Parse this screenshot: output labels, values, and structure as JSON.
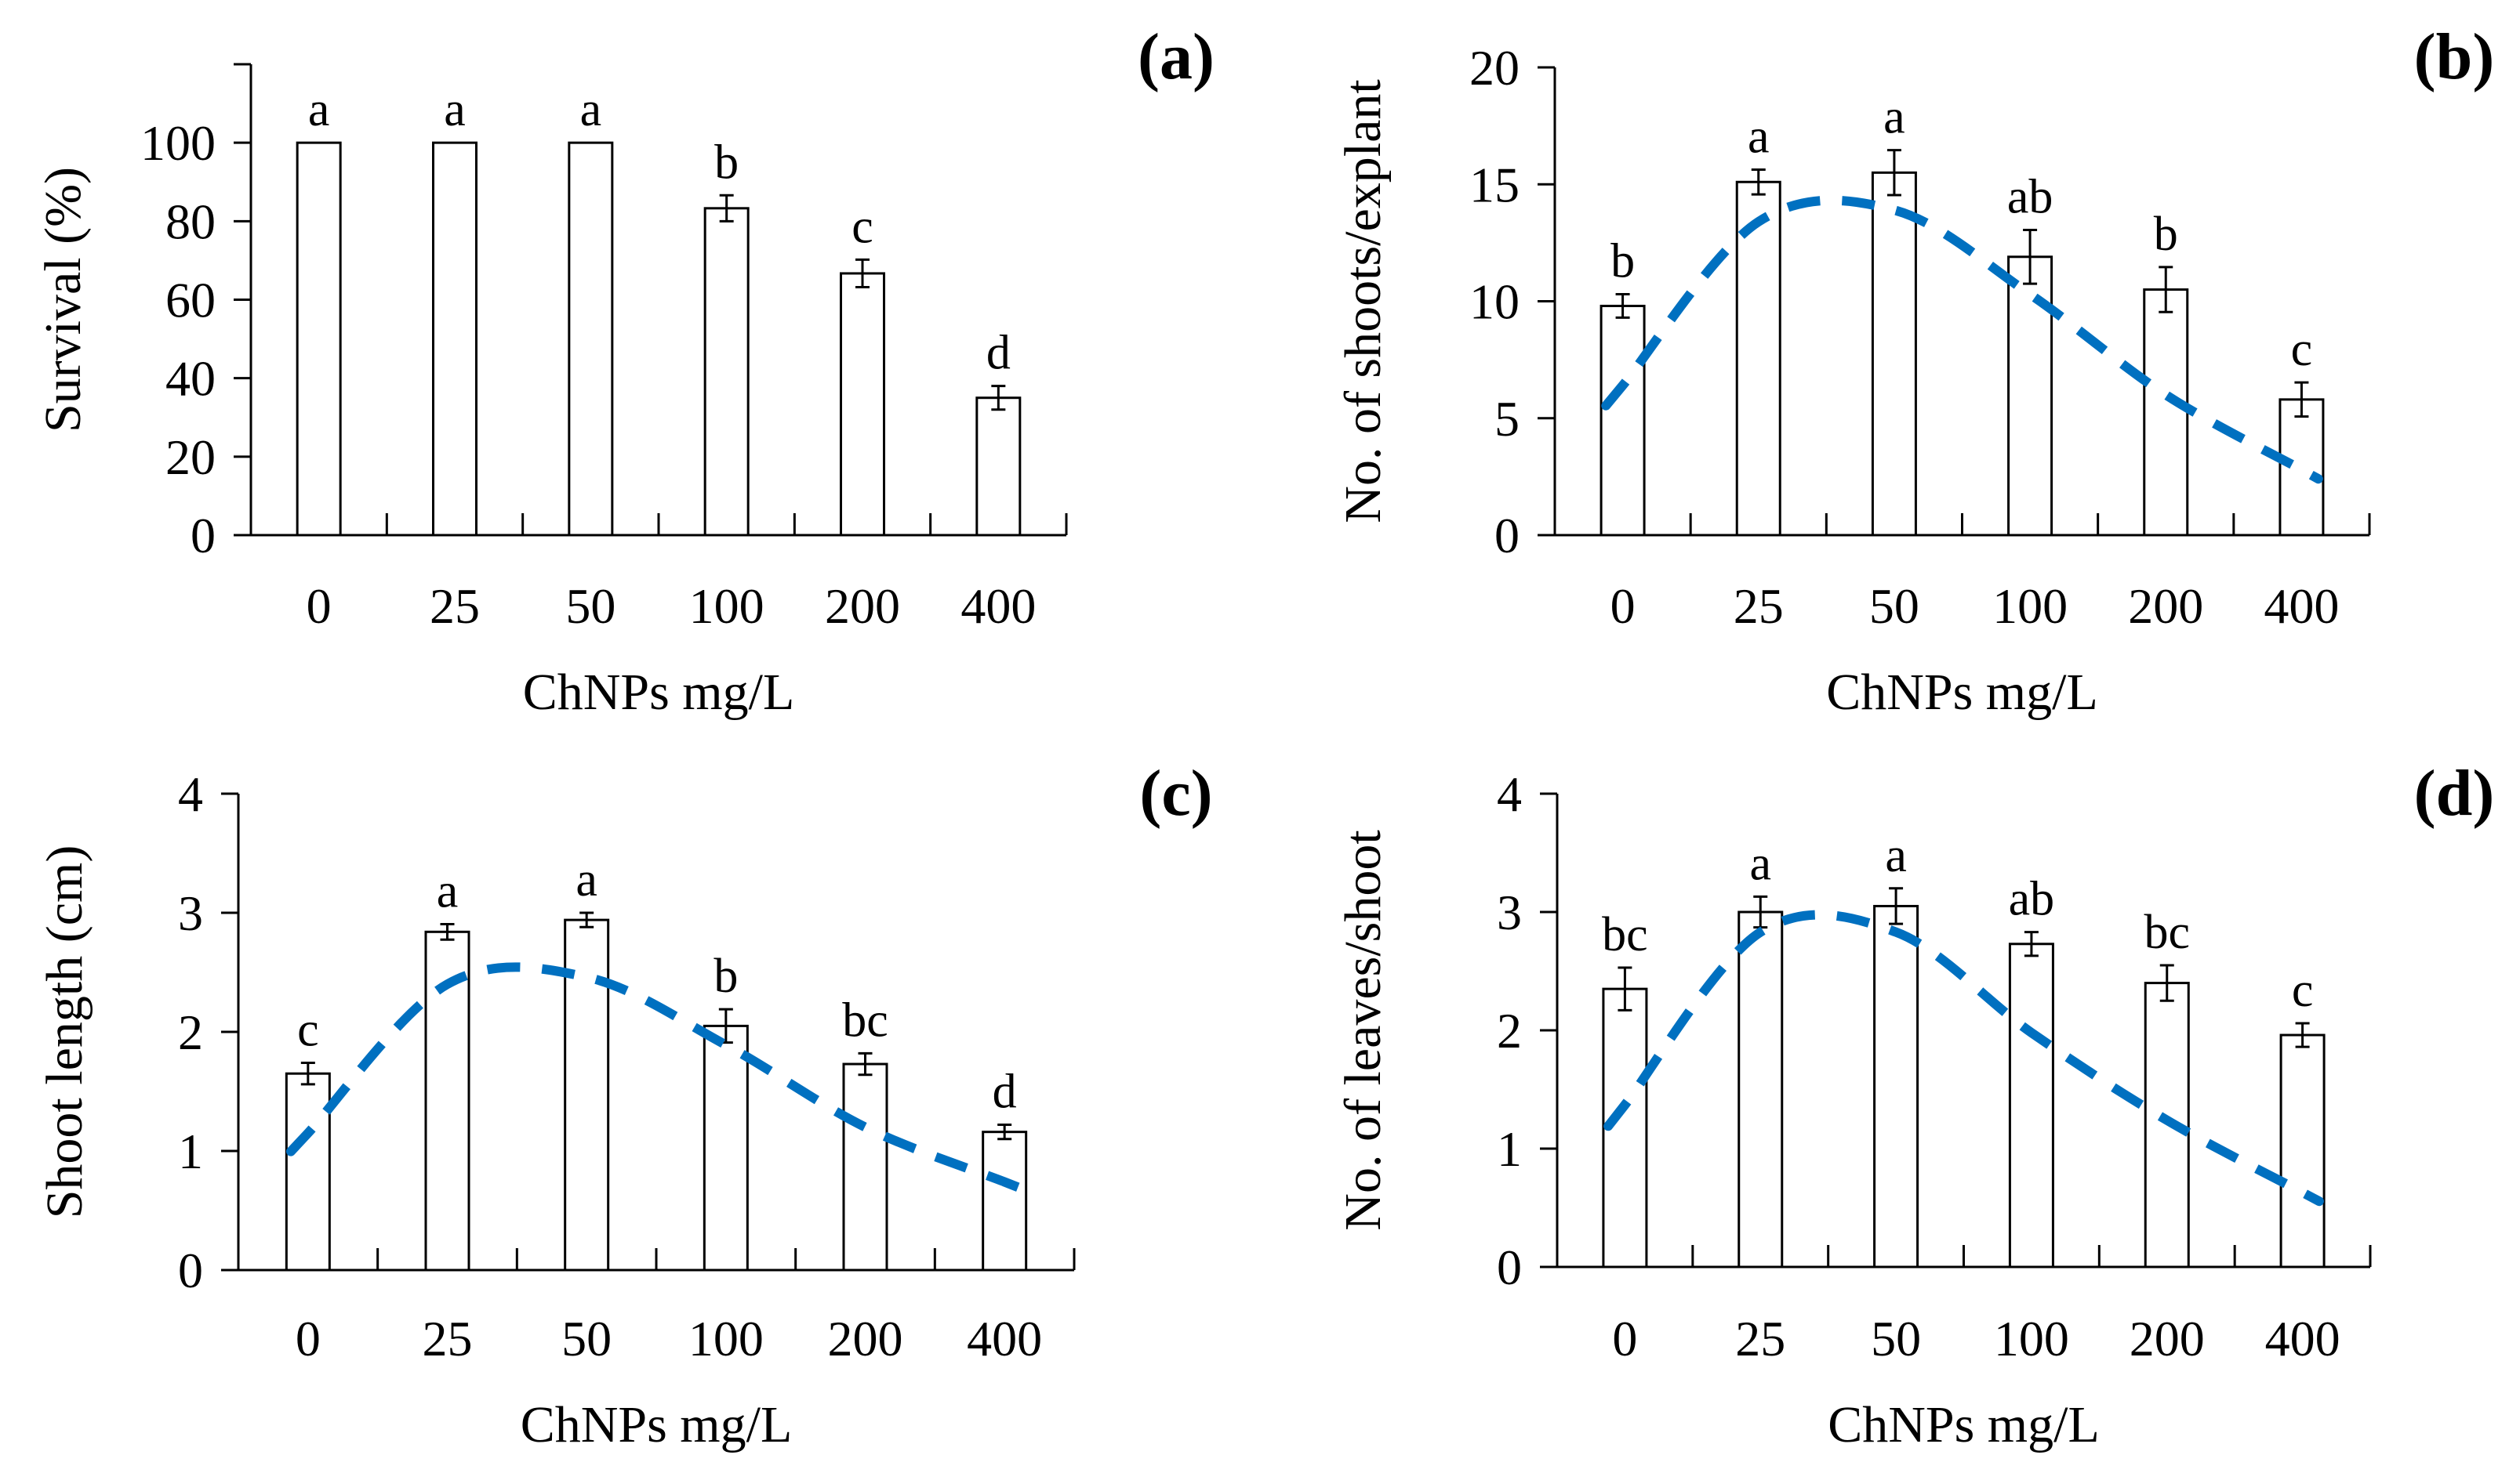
{
  "chart_data": [
    {
      "type": "bar",
      "panel_label": "(a)",
      "categories": [
        "0",
        "25",
        "50",
        "100",
        "200",
        "400"
      ],
      "values": [
        100,
        100,
        100,
        83.3,
        66.7,
        35
      ],
      "errors": [
        0,
        0,
        0,
        3.3,
        3.5,
        3
      ],
      "significance": [
        "a",
        "a",
        "a",
        "b",
        "c",
        "d"
      ],
      "xlabel": "ChNPs mg/L",
      "ylabel": "Survival (%)",
      "ylim": [
        0,
        120
      ],
      "yticks": [
        0,
        20,
        40,
        60,
        80,
        100
      ],
      "grid": false
    },
    {
      "type": "bar",
      "panel_label": "(b)",
      "categories": [
        "0",
        "25",
        "50",
        "100",
        "200",
        "400"
      ],
      "values": [
        9.8,
        15.1,
        15.5,
        11.9,
        10.5,
        5.8
      ],
      "errors": [
        0.5,
        0.53,
        0.96,
        1.15,
        0.96,
        0.73
      ],
      "significance": [
        "b",
        "a",
        "a",
        "ab",
        "b",
        "c"
      ],
      "trend_line": {
        "style": "dashed",
        "color": "#0070C0",
        "values": [
          6.4,
          13.4,
          13.9,
          10.3,
          6.0,
          2.8
        ]
      },
      "xlabel": "ChNPs mg/L",
      "ylabel": "No. of shoots/explant",
      "ylim": [
        0,
        20
      ],
      "yticks": [
        0,
        5,
        10,
        15,
        20
      ],
      "grid": false
    },
    {
      "type": "bar",
      "panel_label": "(c)",
      "categories": [
        "0",
        "25",
        "50",
        "100",
        "200",
        "400"
      ],
      "values": [
        1.65,
        2.84,
        2.94,
        2.05,
        1.73,
        1.16
      ],
      "errors": [
        0.09,
        0.065,
        0.06,
        0.14,
        0.09,
        0.06
      ],
      "significance": [
        "c",
        "a",
        "a",
        "b",
        "bc",
        "d"
      ],
      "trend_line": {
        "style": "dashed",
        "color": "#0070C0",
        "values": [
          1.15,
          2.4,
          2.46,
          1.89,
          1.2,
          0.74
        ]
      },
      "xlabel": "ChNPs mg/L",
      "ylabel": "Shoot length (cm)",
      "ylim": [
        0,
        4
      ],
      "yticks": [
        0,
        1,
        2,
        3,
        4
      ],
      "grid": false
    },
    {
      "type": "bar",
      "panel_label": "(d)",
      "categories": [
        "0",
        "25",
        "50",
        "100",
        "200",
        "400"
      ],
      "values": [
        2.35,
        3.0,
        3.05,
        2.73,
        2.4,
        1.96
      ],
      "errors": [
        0.18,
        0.13,
        0.15,
        0.1,
        0.15,
        0.1
      ],
      "significance": [
        "bc",
        "a",
        "a",
        "ab",
        "bc",
        "c"
      ],
      "trend_line": {
        "style": "dashed",
        "color": "#0070C0",
        "values": [
          1.37,
          2.83,
          2.83,
          1.98,
          1.24,
          0.63
        ]
      },
      "xlabel": "ChNPs mg/L",
      "ylabel": "No. of leaves/shoot",
      "ylim": [
        0,
        4
      ],
      "yticks": [
        0,
        1,
        2,
        3,
        4
      ],
      "grid": false
    }
  ]
}
